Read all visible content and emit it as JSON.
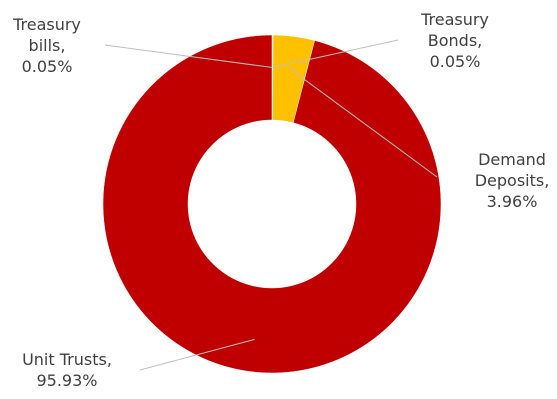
{
  "chart_data": {
    "type": "pie",
    "variant": "doughnut",
    "title": "",
    "slices": [
      {
        "label_lines": [
          "Treasury",
          "bills,",
          "0.05%"
        ],
        "name": "Treasury bills",
        "value": 0.05,
        "color": "#4472c4"
      },
      {
        "label_lines": [
          "Treasury",
          "Bonds,",
          "0.05%"
        ],
        "name": "Treasury Bonds",
        "value": 0.05,
        "color": "#7f7f7f"
      },
      {
        "label_lines": [
          "Demand",
          "Deposits,",
          "3.96%"
        ],
        "name": "Demand Deposits",
        "value": 3.96,
        "color": "#ffc000"
      },
      {
        "label_lines": [
          "Unit Trusts,",
          "95.93%"
        ],
        "name": "Unit Trusts",
        "value": 95.93,
        "color": "#c00000"
      }
    ],
    "legend": "none",
    "data_labels": "outside with leader lines"
  }
}
